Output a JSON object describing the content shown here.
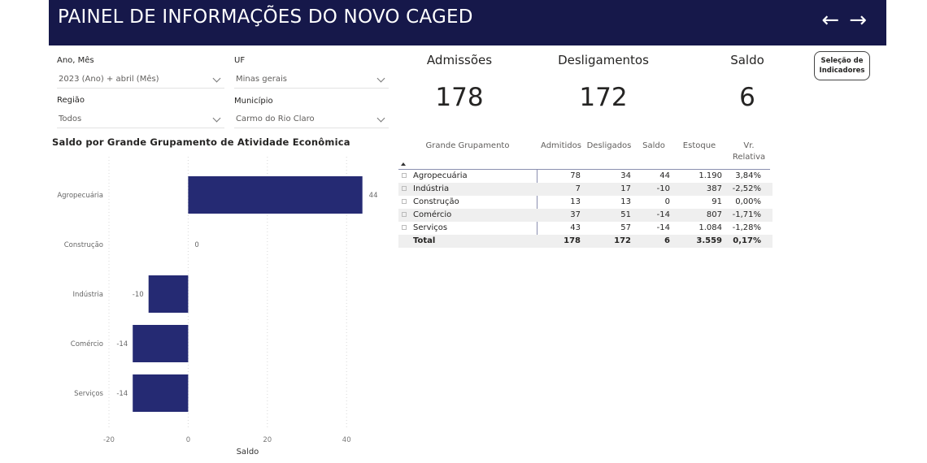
{
  "header": {
    "title": "PAINEL DE INFORMAÇÕES DO NOVO CAGED",
    "back_glyph": "←",
    "forward_glyph": "→"
  },
  "filters": {
    "ano_mes": {
      "label": "Ano, Mês",
      "value": "2023 (Ano) + abril (Mês)"
    },
    "uf": {
      "label": "UF",
      "value": "Minas gerais"
    },
    "regiao": {
      "label": "Região",
      "value": "Todos"
    },
    "municipio": {
      "label": "Município",
      "value": "Carmo do Rio Claro"
    }
  },
  "kpis": {
    "admissoes": {
      "label": "Admissões",
      "value": "178"
    },
    "desligamentos": {
      "label": "Desligamentos",
      "value": "172"
    },
    "saldo": {
      "label": "Saldo",
      "value": "6"
    }
  },
  "selection_button": {
    "line1": "Seleção de",
    "line2": "Indicadores"
  },
  "table": {
    "headers": [
      "Grande Grupamento",
      "Admitidos",
      "Desligados",
      "Saldo",
      "Estoque",
      "Vr.",
      "Relativa"
    ],
    "rows": [
      [
        "Agropecuária",
        "78",
        "34",
        "44",
        "1.190",
        "3,84%"
      ],
      [
        "Indústria",
        "7",
        "17",
        "-10",
        "387",
        "-2,52%"
      ],
      [
        "Construção",
        "13",
        "13",
        "0",
        "91",
        "0,00%"
      ],
      [
        "Comércio",
        "37",
        "51",
        "-14",
        "807",
        "-1,71%"
      ],
      [
        "Serviços",
        "43",
        "57",
        "-14",
        "1.084",
        "-1,28%"
      ]
    ],
    "total": [
      "Total",
      "178",
      "172",
      "6",
      "3.559",
      "0,17%"
    ]
  },
  "chart_data": {
    "type": "bar",
    "orientation": "horizontal",
    "title": "Saldo por Grande Grupamento de Atividade Econômica",
    "xlabel": "Saldo",
    "ylabel": "",
    "categories": [
      "Agropecuária",
      "Construção",
      "Indústria",
      "Comércio",
      "Serviços"
    ],
    "values": [
      44,
      0,
      -10,
      -14,
      -14
    ],
    "value_labels": [
      "44",
      "0",
      "-10",
      "-14",
      "-14"
    ],
    "xlim": [
      -20,
      45
    ],
    "xticks": [
      -20,
      0,
      20,
      40
    ],
    "xtick_labels": [
      "-20",
      "0",
      "20",
      "40"
    ],
    "grid": true,
    "bar_color": "#252a73"
  }
}
